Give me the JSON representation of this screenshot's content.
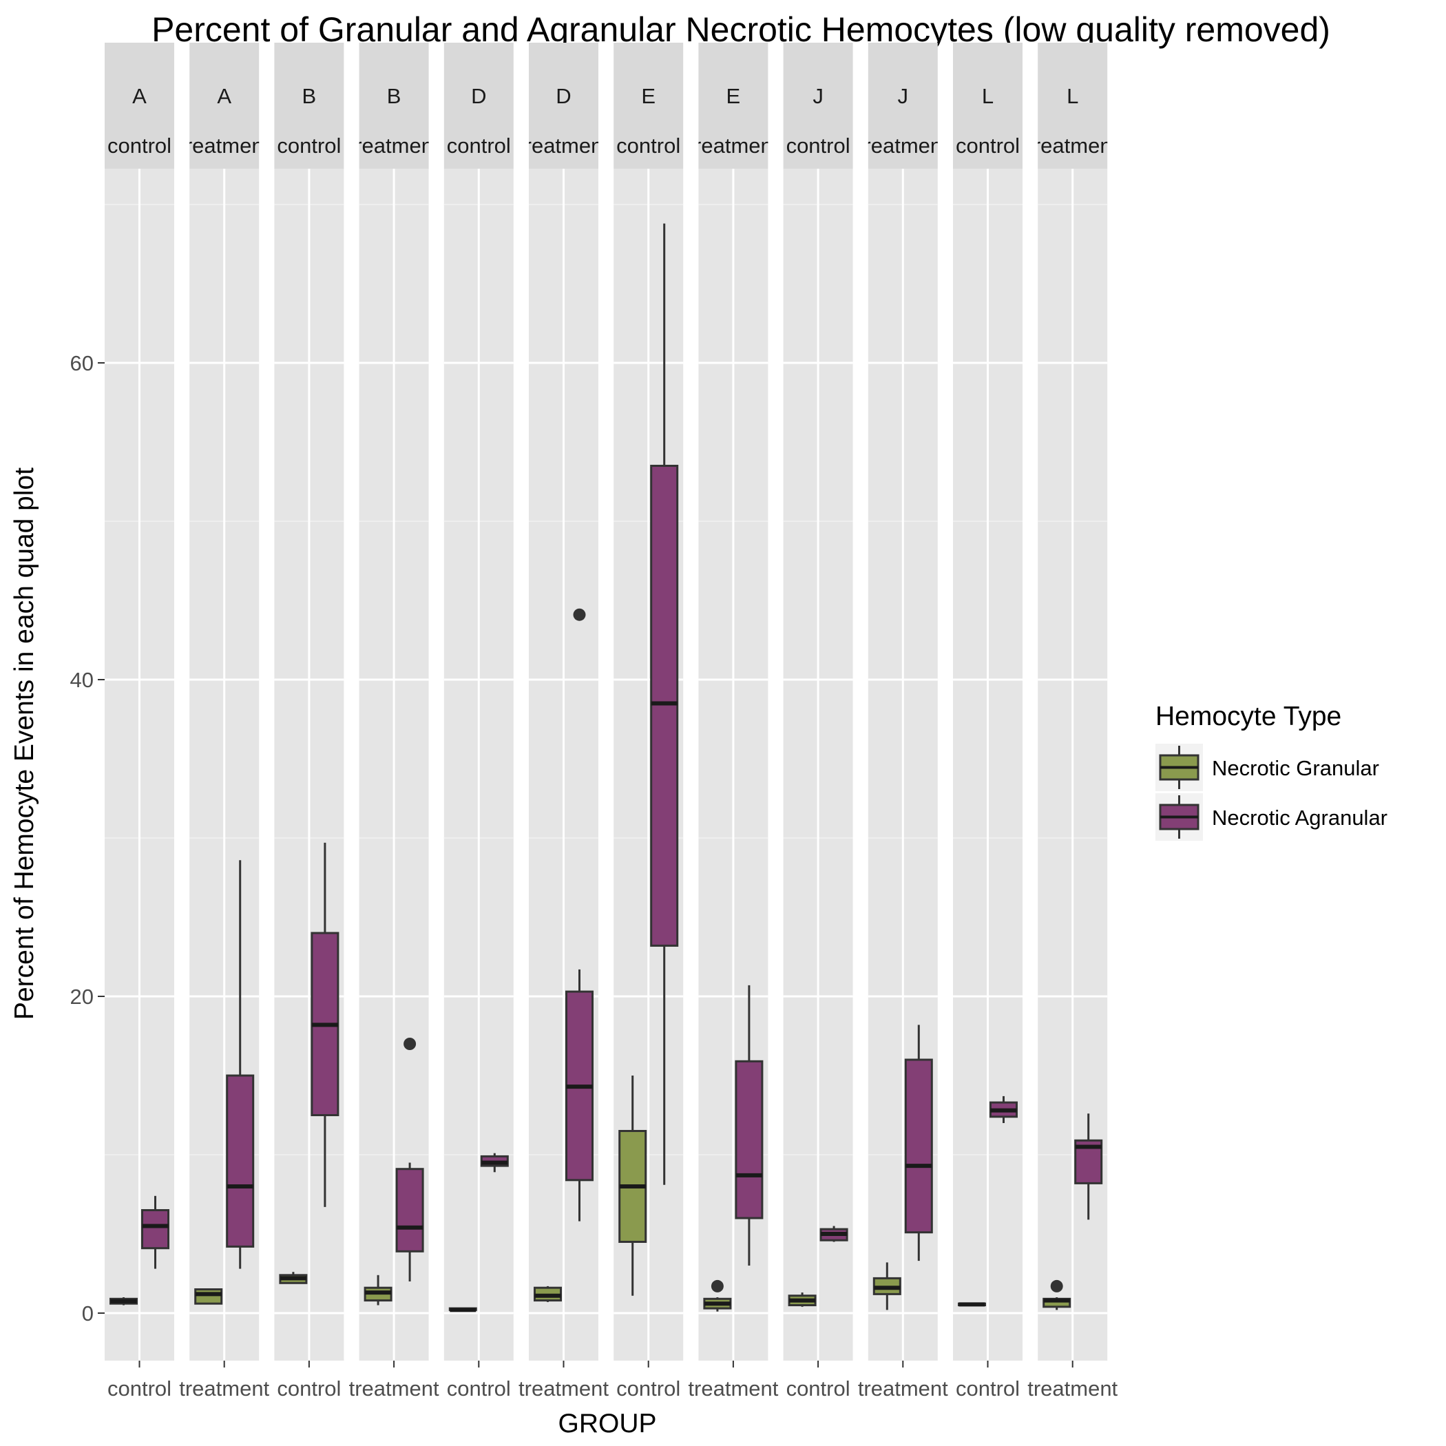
{
  "chart_data": {
    "type": "boxplot",
    "title": "Percent of Granular and Agranular Necrotic Hemocytes (low quality removed)",
    "xlabel": "GROUP",
    "ylabel": "Percent of Hemocyte Events in each quad plot",
    "ylim": [
      -3,
      72
    ],
    "y_ticks": [
      0,
      20,
      40,
      60
    ],
    "grid": true,
    "legend": {
      "title": "Hemocyte Type",
      "position": "right",
      "items": [
        {
          "label": "Necrotic Granular",
          "color": "#8a9a4e"
        },
        {
          "label": "Necrotic Agranular",
          "color": "#833f75"
        }
      ]
    },
    "facets": [
      {
        "site": "A",
        "group": "control",
        "x_tick": "control",
        "granular": {
          "min": 0.5,
          "q1": 0.6,
          "median": 0.75,
          "q3": 0.9,
          "max": 1.0,
          "outliers": []
        },
        "agranular": {
          "min": 2.8,
          "q1": 4.1,
          "median": 5.5,
          "q3": 6.5,
          "max": 7.4,
          "outliers": []
        }
      },
      {
        "site": "A",
        "group": "treatment",
        "x_tick": "treatment",
        "granular": {
          "min": 0.6,
          "q1": 0.6,
          "median": 1.2,
          "q3": 1.5,
          "max": 1.5,
          "outliers": []
        },
        "agranular": {
          "min": 2.8,
          "q1": 4.2,
          "median": 8.0,
          "q3": 15.0,
          "max": 28.6,
          "outliers": []
        }
      },
      {
        "site": "B",
        "group": "control",
        "x_tick": "control",
        "granular": {
          "min": 1.9,
          "q1": 1.9,
          "median": 2.2,
          "q3": 2.4,
          "max": 2.6,
          "outliers": []
        },
        "agranular": {
          "min": 6.7,
          "q1": 12.5,
          "median": 18.2,
          "q3": 24.0,
          "max": 29.7,
          "outliers": []
        }
      },
      {
        "site": "B",
        "group": "treatment",
        "x_tick": "treatment",
        "granular": {
          "min": 0.5,
          "q1": 0.8,
          "median": 1.3,
          "q3": 1.6,
          "max": 2.4,
          "outliers": []
        },
        "agranular": {
          "min": 2.0,
          "q1": 3.9,
          "median": 5.4,
          "q3": 9.1,
          "max": 9.5,
          "outliers": [
            17.0
          ]
        }
      },
      {
        "site": "D",
        "group": "control",
        "x_tick": "control",
        "granular": {
          "min": 0.2,
          "q1": 0.2,
          "median": 0.2,
          "q3": 0.3,
          "max": 0.3,
          "outliers": []
        },
        "agranular": {
          "min": 8.9,
          "q1": 9.3,
          "median": 9.5,
          "q3": 9.9,
          "max": 10.1,
          "outliers": []
        }
      },
      {
        "site": "D",
        "group": "treatment",
        "x_tick": "treatment",
        "granular": {
          "min": 0.7,
          "q1": 0.8,
          "median": 1.1,
          "q3": 1.6,
          "max": 1.7,
          "outliers": []
        },
        "agranular": {
          "min": 5.8,
          "q1": 8.4,
          "median": 14.3,
          "q3": 20.3,
          "max": 21.7,
          "outliers": [
            44.1
          ]
        }
      },
      {
        "site": "E",
        "group": "control",
        "x_tick": "control",
        "granular": {
          "min": 1.1,
          "q1": 4.5,
          "median": 8.0,
          "q3": 11.5,
          "max": 15.0,
          "outliers": []
        },
        "agranular": {
          "min": 8.1,
          "q1": 23.2,
          "median": 38.5,
          "q3": 53.5,
          "max": 68.8,
          "outliers": []
        }
      },
      {
        "site": "E",
        "group": "treatment",
        "x_tick": "treatment",
        "granular": {
          "min": 0.1,
          "q1": 0.3,
          "median": 0.6,
          "q3": 0.9,
          "max": 1.0,
          "outliers": [
            1.7
          ]
        },
        "agranular": {
          "min": 3.0,
          "q1": 6.0,
          "median": 8.7,
          "q3": 15.9,
          "max": 20.7,
          "outliers": []
        }
      },
      {
        "site": "J",
        "group": "control",
        "x_tick": "control",
        "granular": {
          "min": 0.4,
          "q1": 0.5,
          "median": 0.8,
          "q3": 1.1,
          "max": 1.3,
          "outliers": []
        },
        "agranular": {
          "min": 4.5,
          "q1": 4.6,
          "median": 5.0,
          "q3": 5.3,
          "max": 5.5,
          "outliers": []
        }
      },
      {
        "site": "J",
        "group": "treatment",
        "x_tick": "treatment",
        "granular": {
          "min": 0.2,
          "q1": 1.2,
          "median": 1.6,
          "q3": 2.2,
          "max": 3.2,
          "outliers": []
        },
        "agranular": {
          "min": 3.3,
          "q1": 5.1,
          "median": 9.3,
          "q3": 16.0,
          "max": 18.2,
          "outliers": []
        }
      },
      {
        "site": "L",
        "group": "control",
        "x_tick": "control",
        "granular": {
          "min": 0.5,
          "q1": 0.5,
          "median": 0.55,
          "q3": 0.6,
          "max": 0.65,
          "outliers": []
        },
        "agranular": {
          "min": 12.0,
          "q1": 12.4,
          "median": 12.8,
          "q3": 13.3,
          "max": 13.7,
          "outliers": []
        }
      },
      {
        "site": "L",
        "group": "treatment",
        "x_tick": "treatment",
        "granular": {
          "min": 0.2,
          "q1": 0.4,
          "median": 0.8,
          "q3": 0.9,
          "max": 1.0,
          "outliers": [
            1.7
          ]
        },
        "agranular": {
          "min": 5.9,
          "q1": 8.2,
          "median": 10.5,
          "q3": 10.9,
          "max": 12.6,
          "outliers": []
        }
      }
    ]
  }
}
